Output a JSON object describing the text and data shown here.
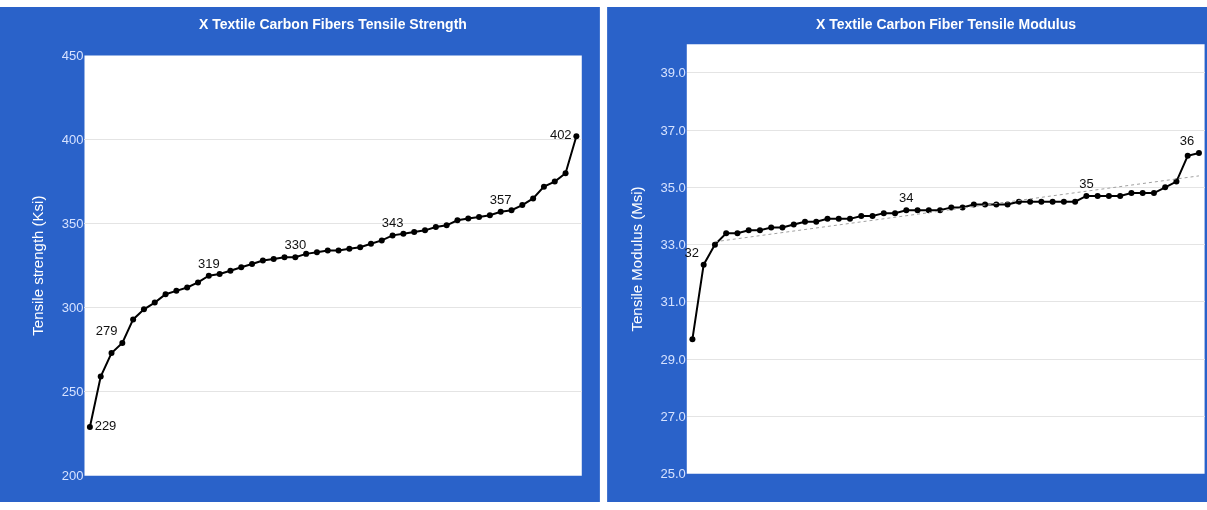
{
  "chart_data": [
    {
      "type": "line",
      "title": "X Textile Carbon Fibers Tensile Strength",
      "ylabel": "Tensile strength (Ksi)",
      "categories": [
        null,
        null,
        null,
        null,
        null,
        null,
        null,
        null,
        null,
        null,
        null,
        null,
        null,
        null,
        null,
        null,
        null,
        null,
        null,
        null,
        null,
        null,
        null,
        null,
        null,
        null,
        null,
        null,
        null,
        null,
        null,
        null,
        null,
        null,
        null,
        null,
        null,
        null,
        null,
        null,
        null,
        null,
        null,
        null,
        null,
        null
      ],
      "series": [
        {
          "color": "#000000",
          "marker": "circle",
          "line_style": "solid",
          "values": [
            229,
            259,
            273,
            279,
            293,
            299,
            303,
            308,
            310,
            312,
            315,
            319,
            320,
            322,
            324,
            326,
            328,
            329,
            330,
            330,
            332,
            333,
            334,
            334,
            335,
            336,
            338,
            340,
            343,
            344,
            345,
            346,
            348,
            349,
            352,
            353,
            354,
            355,
            357,
            358,
            361,
            365,
            372,
            375,
            380,
            402
          ],
          "value_labels": [
            "229",
            null,
            null,
            "279",
            null,
            null,
            null,
            null,
            null,
            null,
            null,
            "319",
            null,
            null,
            null,
            null,
            null,
            null,
            null,
            "330",
            null,
            null,
            null,
            null,
            null,
            null,
            null,
            null,
            "343",
            null,
            null,
            null,
            null,
            null,
            null,
            null,
            null,
            null,
            "357",
            null,
            null,
            null,
            null,
            null,
            null,
            "402"
          ]
        }
      ],
      "ylim": [
        200,
        450
      ],
      "yticks": [
        200,
        250,
        300,
        350,
        400,
        450
      ],
      "grid": "y",
      "tick_labels": "y"
    },
    {
      "type": "line",
      "title": "X Textile Carbon Fiber Tensile Modulus",
      "ylabel": "Tensile Modulus (Msi)",
      "categories": [
        null,
        null,
        null,
        null,
        null,
        null,
        null,
        null,
        null,
        null,
        null,
        null,
        null,
        null,
        null,
        null,
        null,
        null,
        null,
        null,
        null,
        null,
        null,
        null,
        null,
        null,
        null,
        null,
        null,
        null,
        null,
        null,
        null,
        null,
        null,
        null,
        null,
        null,
        null,
        null,
        null,
        null,
        null,
        null,
        null,
        null
      ],
      "series": [
        {
          "color": "#000000",
          "marker": "circle",
          "line_style": "solid",
          "values": [
            29.7,
            32.3,
            33.0,
            33.4,
            33.4,
            33.5,
            33.5,
            33.6,
            33.6,
            33.7,
            33.8,
            33.8,
            33.9,
            33.9,
            33.9,
            34.0,
            34.0,
            34.1,
            34.1,
            34.2,
            34.2,
            34.2,
            34.2,
            34.3,
            34.3,
            34.4,
            34.4,
            34.4,
            34.4,
            34.5,
            34.5,
            34.5,
            34.5,
            34.5,
            34.5,
            34.7,
            34.7,
            34.7,
            34.7,
            34.8,
            34.8,
            34.8,
            35.0,
            35.2,
            36.1,
            36.2
          ],
          "value_labels": [
            null,
            "32",
            null,
            null,
            null,
            null,
            null,
            null,
            null,
            null,
            null,
            null,
            null,
            null,
            null,
            null,
            null,
            null,
            null,
            "34",
            null,
            null,
            null,
            null,
            null,
            null,
            null,
            null,
            null,
            null,
            null,
            null,
            null,
            null,
            null,
            "35",
            null,
            null,
            null,
            null,
            null,
            null,
            null,
            null,
            null,
            "36"
          ]
        },
        {
          "type": "line",
          "color": "#a0a0a0",
          "marker": "none",
          "line_style": "dotted",
          "values": [
            null,
            null,
            33.1,
            null,
            null,
            null,
            null,
            null,
            null,
            null,
            null,
            null,
            null,
            null,
            null,
            null,
            null,
            null,
            null,
            null,
            null,
            null,
            null,
            null,
            null,
            null,
            null,
            null,
            null,
            null,
            null,
            null,
            null,
            null,
            null,
            null,
            null,
            null,
            null,
            null,
            null,
            null,
            null,
            null,
            null,
            35.4
          ]
        }
      ],
      "ylim": [
        25,
        40
      ],
      "yticks": [
        {
          "value": 25,
          "label": "25.0"
        },
        {
          "value": 27,
          "label": "27.0"
        },
        {
          "value": 29,
          "label": "29.0"
        },
        {
          "value": 31,
          "label": "31.0"
        },
        {
          "value": 33,
          "label": "33.0"
        },
        {
          "value": 35,
          "label": "35.0"
        },
        {
          "value": 37,
          "label": "37.0"
        },
        {
          "value": 39,
          "label": "39.0"
        }
      ],
      "grid": "y",
      "tick_labels": "y"
    }
  ]
}
